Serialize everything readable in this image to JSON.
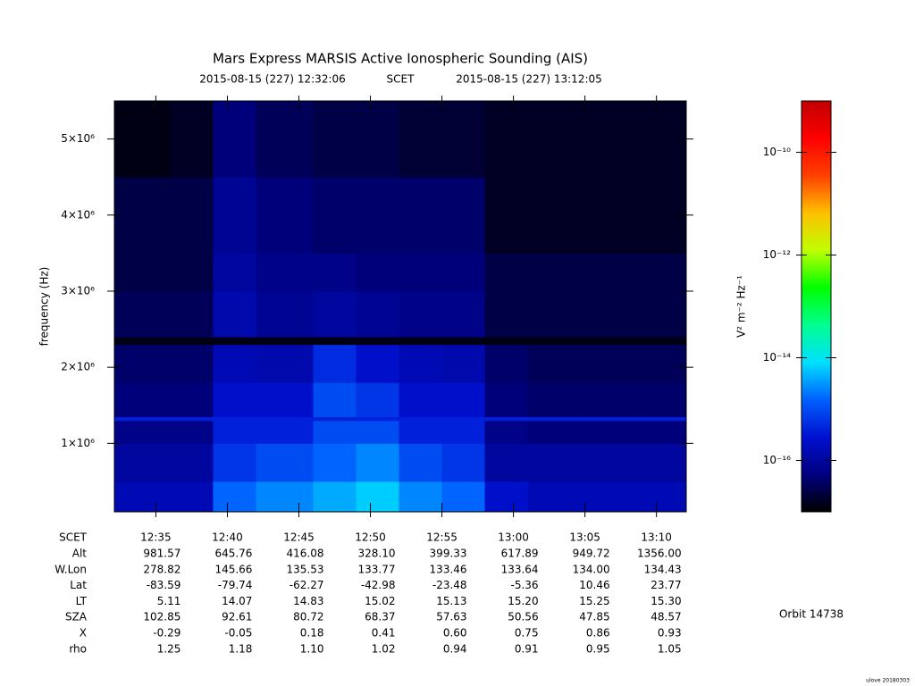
{
  "chart_data": {
    "type": "heatmap",
    "title": "Mars Express MARSIS Active Ionospheric Sounding (AIS)",
    "start": "2015-08-15 (227) 12:32:06",
    "scet_label": "SCET",
    "end": "2015-08-15 (227) 13:12:05",
    "y_label": "frequency (Hz)",
    "ylim": [
      100000,
      5500000
    ],
    "yticks": [
      {
        "value": 1000000,
        "label": "1×10⁶"
      },
      {
        "value": 2000000,
        "label": "2×10⁶"
      },
      {
        "value": 3000000,
        "label": "3×10⁶"
      },
      {
        "value": 4000000,
        "label": "4×10⁶"
      },
      {
        "value": 5000000,
        "label": "5×10⁶"
      }
    ],
    "xticks": [
      "12:35",
      "12:40",
      "12:45",
      "12:50",
      "12:55",
      "13:00",
      "13:05",
      "13:10"
    ],
    "x_edges": [
      "12:32:06",
      "12:36",
      "12:39",
      "12:42",
      "12:46",
      "12:49",
      "12:52",
      "12:55",
      "12:58",
      "13:01",
      "13:05",
      "13:09",
      "13:12:05"
    ],
    "y_edges": [
      100000,
      500000,
      1000000,
      1300000,
      1350000,
      1800000,
      2300000,
      2400000,
      3000000,
      3500000,
      4500000,
      5500000
    ],
    "values": [
      [
        1.6e-16,
        1.6e-16,
        1.6e-15,
        2.5e-15,
        4e-15,
        6.3e-15,
        2.5e-15,
        1.6e-15,
        2.5e-16,
        1.6e-16,
        1.6e-16,
        1.6e-16
      ],
      [
        1e-16,
        1e-16,
        6.3e-16,
        1e-15,
        1.6e-15,
        2.5e-15,
        1e-15,
        6.3e-16,
        1e-16,
        1e-16,
        1e-16,
        1e-16
      ],
      [
        6.3e-17,
        6.3e-17,
        4e-16,
        4e-16,
        1e-15,
        1e-15,
        4e-16,
        4e-16,
        6.3e-17,
        5e-17,
        5e-17,
        5e-17
      ],
      [
        4e-16,
        4e-16,
        4e-16,
        4e-16,
        4e-16,
        4e-16,
        4e-16,
        4e-16,
        4e-16,
        4e-16,
        4e-16,
        4e-16
      ],
      [
        5e-17,
        5e-17,
        2.5e-16,
        2.5e-16,
        1e-15,
        6.3e-16,
        2.5e-16,
        2.5e-16,
        5e-17,
        4e-17,
        4e-17,
        4e-17
      ],
      [
        4e-17,
        4e-17,
        1.6e-16,
        1.3e-16,
        5e-16,
        2.5e-16,
        1.6e-16,
        1.3e-16,
        4e-17,
        3.2e-17,
        3.2e-17,
        3.2e-17
      ],
      [
        1.3e-17,
        1.3e-17,
        1.3e-17,
        1.3e-17,
        1.3e-17,
        1.3e-17,
        1.3e-17,
        1.3e-17,
        1.3e-17,
        1.3e-17,
        1.3e-17,
        1.3e-17
      ],
      [
        3.2e-17,
        3.2e-17,
        1.3e-16,
        8e-17,
        1e-16,
        8e-17,
        6.3e-17,
        6.3e-17,
        2.5e-17,
        2.5e-17,
        2.5e-17,
        2.5e-17
      ],
      [
        2.5e-17,
        2.5e-17,
        1e-16,
        6.3e-17,
        6.3e-17,
        5e-17,
        5e-17,
        5e-17,
        2.5e-17,
        2.5e-17,
        2.5e-17,
        2.5e-17
      ],
      [
        2.5e-17,
        2.5e-17,
        8e-17,
        5e-17,
        4e-17,
        4e-17,
        4e-17,
        4e-17,
        1.6e-17,
        1.6e-17,
        1.6e-17,
        1.6e-17
      ],
      [
        1.3e-17,
        1.6e-17,
        5e-17,
        3.2e-17,
        2.5e-17,
        2.5e-17,
        2e-17,
        2e-17,
        1.6e-17,
        1.6e-17,
        1.6e-17,
        1.6e-17
      ]
    ],
    "colorbar": {
      "label": "V² m⁻² Hz⁻¹",
      "log": true,
      "lim": [
        1e-17,
        1e-09
      ],
      "ticks": [
        {
          "value": 1e-10,
          "label": "10⁻¹⁰"
        },
        {
          "value": 1e-12,
          "label": "10⁻¹²"
        },
        {
          "value": 1e-14,
          "label": "10⁻¹⁴"
        },
        {
          "value": 1e-16,
          "label": "10⁻¹⁶"
        }
      ],
      "colors": [
        "#000000",
        "#000080",
        "#0010d0",
        "#0060ff",
        "#00e0ff",
        "#00ff90",
        "#00ff00",
        "#c0ff00",
        "#ffc000",
        "#ff4000",
        "#ff0000",
        "#c00000"
      ]
    },
    "ephemeris": [
      {
        "name": "Alt",
        "values": [
          "981.57",
          "645.76",
          "416.08",
          "328.10",
          "399.33",
          "617.89",
          "949.72",
          "1356.00"
        ]
      },
      {
        "name": "W.Lon",
        "values": [
          "278.82",
          "145.66",
          "135.53",
          "133.77",
          "133.46",
          "133.64",
          "134.00",
          "134.43"
        ]
      },
      {
        "name": "Lat",
        "values": [
          "-83.59",
          "-79.74",
          "-62.27",
          "-42.98",
          "-23.48",
          "-5.36",
          "10.46",
          "23.77"
        ]
      },
      {
        "name": "LT",
        "values": [
          "5.11",
          "14.07",
          "14.83",
          "15.02",
          "15.13",
          "15.20",
          "15.25",
          "15.30"
        ]
      },
      {
        "name": "SZA",
        "values": [
          "102.85",
          "92.61",
          "80.72",
          "68.37",
          "57.63",
          "50.56",
          "47.85",
          "48.57"
        ]
      },
      {
        "name": "X",
        "values": [
          "-0.29",
          "-0.05",
          "0.18",
          "0.41",
          "0.60",
          "0.75",
          "0.86",
          "0.93"
        ]
      },
      {
        "name": "rho",
        "values": [
          "1.25",
          "1.18",
          "1.10",
          "1.02",
          "0.94",
          "0.91",
          "0.95",
          "1.05"
        ]
      }
    ],
    "orbit": "Orbit 14738",
    "credit": "ulove 20180303"
  }
}
